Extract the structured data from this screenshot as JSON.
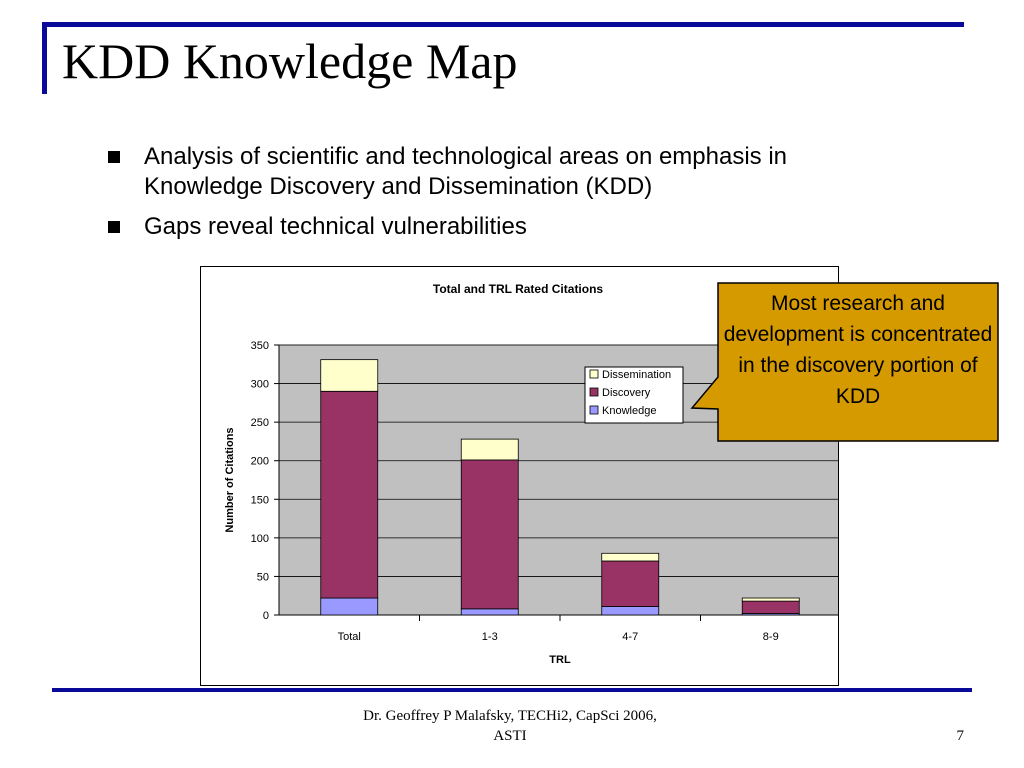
{
  "slide": {
    "title": "KDD Knowledge Map",
    "bullets": [
      "Analysis of scientific and technological areas on emphasis in Knowledge Discovery and Dissemination (KDD)",
      "Gaps reveal technical vulnerabilities"
    ],
    "callout": "Most research and development is concentrated in the discovery portion of KDD",
    "footer_line1": "Dr. Geoffrey P Malafsky, TECHi2,   CapSci 2006,",
    "footer_line2": "ASTI",
    "page_number": "7"
  },
  "colors": {
    "accent": "#0a0a9a",
    "plot_bg": "#c0c0c0",
    "callout_bg": "#d49a00",
    "knowledge": "#9999ff",
    "discovery": "#993366",
    "dissemination": "#ffffcc"
  },
  "chart_data": {
    "type": "bar",
    "stacked": true,
    "title": "Total and TRL Rated Citations",
    "xlabel": "TRL",
    "ylabel": "Number of Citations",
    "categories": [
      "Total",
      "1-3",
      "4-7",
      "8-9"
    ],
    "series": [
      {
        "name": "Knowledge",
        "values": [
          22,
          8,
          11,
          2
        ]
      },
      {
        "name": "Discovery",
        "values": [
          268,
          193,
          59,
          16
        ]
      },
      {
        "name": "Dissemination",
        "values": [
          41,
          27,
          10,
          4
        ]
      }
    ],
    "ylim": [
      0,
      350
    ],
    "yticks": [
      0,
      50,
      100,
      150,
      200,
      250,
      300,
      350
    ],
    "legend_position": "top-right",
    "grid": true
  }
}
